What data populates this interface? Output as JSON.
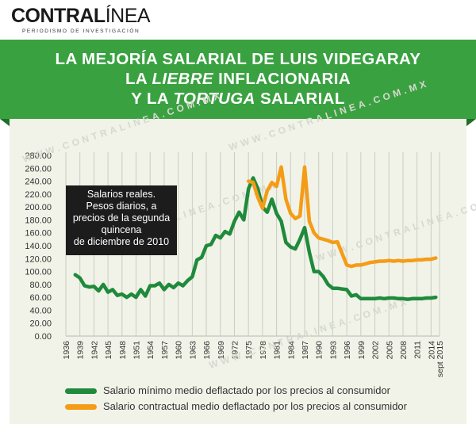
{
  "brand": {
    "name_bold": "CONTRAL",
    "name_thin": "ÍNEA",
    "tagline": "PERIODISMO DE INVESTIGACIÓN"
  },
  "banner": {
    "line1": "LA MEJORÍA SALARIAL DE LUIS VIDEGARAY",
    "line2_pre": "LA ",
    "line2_em": "LIEBRE",
    "line2_post": " INFLACIONARIA",
    "line3_pre": "Y LA ",
    "line3_em": "TORTUGA",
    "line3_post": " SALARIAL",
    "color": "#3aa141"
  },
  "watermark": "WWW.CONTRALINEA.COM.MX",
  "info_box": [
    "Salarios reales.",
    "Pesos diarios, a",
    "precios de la segunda",
    "quincena",
    "de diciembre de 2010"
  ],
  "chart_data": {
    "type": "line",
    "ylim": [
      0,
      280
    ],
    "yticks": [
      "0.00",
      "20.00",
      "40.00",
      "60.00",
      "80.00",
      "100.00",
      "120.00",
      "140.00",
      "160.00",
      "180.00",
      "200.00",
      "220.00",
      "240.00",
      "260.00",
      "280.00"
    ],
    "xlim": [
      1936,
      2015.8
    ],
    "xticks": [
      "1936",
      "1939",
      "1942",
      "1945",
      "1948",
      "1951",
      "1954",
      "1957",
      "1960",
      "1963",
      "1966",
      "1969",
      "1972",
      "1975",
      "1978",
      "1981",
      "1984",
      "1987",
      "1990",
      "1993",
      "1996",
      "1999",
      "2002",
      "2005",
      "2008",
      "2011",
      "2014",
      "sept 2015"
    ],
    "grid": "vertical",
    "series": [
      {
        "name": "Salario mínimo medio deflactado por los precios al consumidor",
        "color": "#1f8a3c",
        "x": [
          1938,
          1939,
          1940,
          1941,
          1942,
          1943,
          1944,
          1945,
          1946,
          1947,
          1948,
          1949,
          1950,
          1951,
          1952,
          1953,
          1954,
          1955,
          1956,
          1957,
          1958,
          1959,
          1960,
          1961,
          1962,
          1963,
          1964,
          1965,
          1966,
          1967,
          1968,
          1969,
          1970,
          1971,
          1972,
          1973,
          1974,
          1975,
          1976,
          1977,
          1978,
          1979,
          1980,
          1981,
          1982,
          1983,
          1984,
          1985,
          1986,
          1987,
          1988,
          1989,
          1990,
          1991,
          1992,
          1993,
          1994,
          1995,
          1996,
          1997,
          1998,
          1999,
          2000,
          2001,
          2002,
          2003,
          2004,
          2005,
          2006,
          2007,
          2008,
          2009,
          2010,
          2011,
          2012,
          2013,
          2014,
          2015
        ],
        "y": [
          95,
          90,
          78,
          76,
          77,
          70,
          80,
          68,
          72,
          63,
          65,
          60,
          65,
          60,
          72,
          62,
          78,
          78,
          82,
          72,
          80,
          75,
          82,
          78,
          86,
          92,
          118,
          122,
          140,
          142,
          156,
          152,
          162,
          158,
          178,
          192,
          180,
          228,
          245,
          228,
          200,
          192,
          212,
          190,
          178,
          145,
          138,
          135,
          150,
          168,
          130,
          100,
          100,
          92,
          80,
          74,
          74,
          73,
          72,
          62,
          64,
          58,
          58,
          58,
          58,
          59,
          58,
          59,
          59,
          58,
          58,
          57,
          58,
          58,
          58,
          59,
          59,
          60
        ]
      },
      {
        "name": "Salario contractual medio deflactado por los precios al consumidor",
        "color": "#f59c16",
        "x": [
          1975,
          1976,
          1977,
          1978,
          1979,
          1980,
          1981,
          1982,
          1983,
          1984,
          1985,
          1986,
          1987,
          1988,
          1989,
          1990,
          1991,
          1992,
          1993,
          1994,
          1995,
          1996,
          1997,
          1998,
          1999,
          2000,
          2001,
          2002,
          2003,
          2004,
          2005,
          2006,
          2007,
          2008,
          2009,
          2010,
          2011,
          2012,
          2013,
          2014,
          2015
        ],
        "y": [
          240,
          238,
          215,
          198,
          225,
          238,
          232,
          262,
          212,
          190,
          182,
          186,
          262,
          178,
          160,
          152,
          150,
          148,
          145,
          146,
          128,
          110,
          108,
          110,
          110,
          112,
          114,
          115,
          116,
          116,
          117,
          116,
          117,
          116,
          117,
          117,
          118,
          118,
          119,
          119,
          121
        ]
      }
    ]
  }
}
